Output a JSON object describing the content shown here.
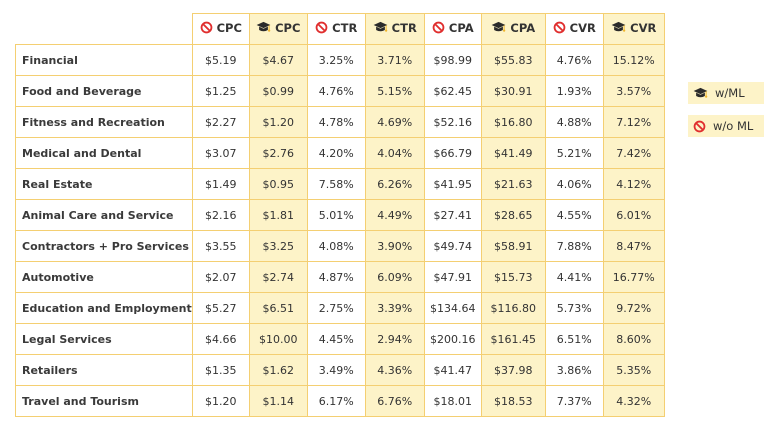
{
  "chart_data": {
    "type": "table",
    "columns": [
      {
        "metric": "CPC",
        "model": "w/o ML"
      },
      {
        "metric": "CPC",
        "model": "w/ML"
      },
      {
        "metric": "CTR",
        "model": "w/o ML"
      },
      {
        "metric": "CTR",
        "model": "w/ML"
      },
      {
        "metric": "CPA",
        "model": "w/o ML"
      },
      {
        "metric": "CPA",
        "model": "w/ML"
      },
      {
        "metric": "CVR",
        "model": "w/o ML"
      },
      {
        "metric": "CVR",
        "model": "w/ML"
      }
    ],
    "rows": [
      {
        "category": "Financial",
        "values": [
          "$5.19",
          "$4.67",
          "3.25%",
          "3.71%",
          "$98.99",
          "$55.83",
          "4.76%",
          "15.12%"
        ]
      },
      {
        "category": "Food and Beverage",
        "values": [
          "$1.25",
          "$0.99",
          "4.76%",
          "5.15%",
          "$62.45",
          "$30.91",
          "1.93%",
          "3.57%"
        ]
      },
      {
        "category": "Fitness and Recreation",
        "values": [
          "$2.27",
          "$1.20",
          "4.78%",
          "4.69%",
          "$52.16",
          "$16.80",
          "4.88%",
          "7.12%"
        ]
      },
      {
        "category": "Medical and Dental",
        "values": [
          "$3.07",
          "$2.76",
          "4.20%",
          "4.04%",
          "$66.79",
          "$41.49",
          "5.21%",
          "7.42%"
        ]
      },
      {
        "category": "Real Estate",
        "values": [
          "$1.49",
          "$0.95",
          "7.58%",
          "6.26%",
          "$41.95",
          "$21.63",
          "4.06%",
          "4.12%"
        ]
      },
      {
        "category": "Animal Care and Service",
        "values": [
          "$2.16",
          "$1.81",
          "5.01%",
          "4.49%",
          "$27.41",
          "$28.65",
          "4.55%",
          "6.01%"
        ]
      },
      {
        "category": "Contractors + Pro Services",
        "values": [
          "$3.55",
          "$3.25",
          "4.08%",
          "3.90%",
          "$49.74",
          "$58.91",
          "7.88%",
          "8.47%"
        ]
      },
      {
        "category": "Automotive",
        "values": [
          "$2.07",
          "$2.74",
          "4.87%",
          "6.09%",
          "$47.91",
          "$15.73",
          "4.41%",
          "16.77%"
        ]
      },
      {
        "category": "Education and Employment",
        "values": [
          "$5.27",
          "$6.51",
          "2.75%",
          "3.39%",
          "$134.64",
          "$116.80",
          "5.73%",
          "9.72%"
        ]
      },
      {
        "category": "Legal Services",
        "values": [
          "$4.66",
          "$10.00",
          "4.45%",
          "2.94%",
          "$200.16",
          "$161.45",
          "6.51%",
          "8.60%"
        ]
      },
      {
        "category": "Retailers",
        "values": [
          "$1.35",
          "$1.62",
          "3.49%",
          "4.36%",
          "$41.47",
          "$37.98",
          "3.86%",
          "5.35%"
        ]
      },
      {
        "category": "Travel and Tourism",
        "values": [
          "$1.20",
          "$1.14",
          "6.17%",
          "6.76%",
          "$18.01",
          "$18.53",
          "7.37%",
          "4.32%"
        ]
      }
    ],
    "legend": {
      "placement": "right",
      "items": [
        {
          "model": "w/ML",
          "label": "w/ML",
          "icon": "graduation-cap-icon",
          "color": "#fdf3c8"
        },
        {
          "model": "w/o ML",
          "label": "w/o ML",
          "icon": "prohibited-icon",
          "color": "#fdf3c8"
        }
      ]
    }
  },
  "colors": {
    "ml_column_fill": "#fdf3c8",
    "grid_border": "#f4cf72",
    "prohibited_icon": "#e02e2e",
    "cap_icon": "#2b2b2b",
    "cap_tassel": "#f0b62c"
  }
}
